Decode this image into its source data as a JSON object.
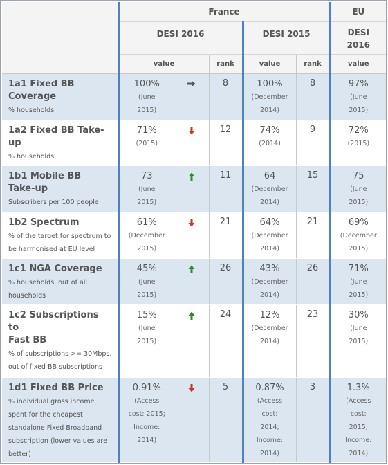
{
  "header": {
    "group_france": "France",
    "group_eu": "EU",
    "desi2016": "DESI 2016",
    "desi2015": "DESI 2015",
    "eu_desi_line1": "DESI",
    "eu_desi_line2": "2016",
    "col_value": "value",
    "col_rank": "rank"
  },
  "rows": [
    {
      "name_line1": "1a1 Fixed BB",
      "name_line2": "Coverage",
      "desc": "% households",
      "v16": "100%",
      "n16a": "(June",
      "n16b": "2015)",
      "trend": "right-arrow-icon",
      "trend_color": "#555555",
      "r16": "8",
      "v15": "100%",
      "n15a": "(December",
      "n15b": "2014)",
      "r15": "8",
      "veu": "97%",
      "neua": "(June",
      "neub": "2015)"
    },
    {
      "name_line1": "1a2 Fixed BB Take-",
      "name_line2": "up",
      "desc": "% households",
      "v16": "71%",
      "n16a": "(2015)",
      "trend": "down-arrow-icon",
      "trend_color": "#c0392b",
      "r16": "12",
      "v15": "74%",
      "n15a": "(2014)",
      "r15": "9",
      "veu": "72%",
      "neua": "(2015)"
    },
    {
      "name_line1": "1b1 Mobile BB",
      "name_line2": "Take-up",
      "desc": "Subscribers per 100 people",
      "v16": "73",
      "n16a": "(June",
      "n16b": "2015)",
      "trend": "up-arrow-icon",
      "trend_color": "#2e8b2e",
      "r16": "11",
      "v15": "64",
      "n15a": "(December",
      "n15b": "2014)",
      "r15": "15",
      "veu": "75",
      "neua": "(June",
      "neub": "2015)"
    },
    {
      "name_line1": "1b2 Spectrum",
      "desc": "% of the target for spectrum to be harmonised at EU level",
      "v16": "61%",
      "n16a": "(December",
      "n16b": "2015)",
      "trend": "down-arrow-icon",
      "trend_color": "#c0392b",
      "r16": "21",
      "v15": "64%",
      "n15a": "(December",
      "n15b": "2014)",
      "r15": "21",
      "veu": "69%",
      "neua": "(December",
      "neub": "2015)"
    },
    {
      "name_line1": "1c1 NGA Coverage",
      "desc": "% households, out of all households",
      "v16": "45%",
      "n16a": "(June",
      "n16b": "2015)",
      "trend": "up-arrow-icon",
      "trend_color": "#2e8b2e",
      "r16": "26",
      "v15": "43%",
      "n15a": "(December",
      "n15b": "2014)",
      "r15": "26",
      "veu": "71%",
      "neua": "(June",
      "neub": "2015)"
    },
    {
      "name_line1": "1c2 Subscriptions to",
      "name_line2": "Fast BB",
      "desc": "% of subscriptions >= 30Mbps, out of fixed BB subscriptions",
      "v16": "15%",
      "n16a": "(June",
      "n16b": "2015)",
      "trend": "up-arrow-icon",
      "trend_color": "#2e8b2e",
      "r16": "24",
      "v15": "12%",
      "n15a": "(December",
      "n15b": "2014)",
      "r15": "23",
      "veu": "30%",
      "neua": "(June",
      "neub": "2015)"
    },
    {
      "name_line1": "1d1 Fixed BB Price",
      "desc": "% individual gross income spent for the cheapest standalone Fixed Broadband subscription (lower values are better)",
      "v16": "0.91%",
      "n16a": "(Access",
      "n16b": "cost: 2015;",
      "n16c": "Income:",
      "n16d": "2014)",
      "trend": "down-arrow-icon",
      "trend_color": "#c0392b",
      "r16": "5",
      "v15": "0.87%",
      "n15a": "(Access",
      "n15b": "cost:",
      "n15c": "2014;",
      "n15d": "Income:",
      "n15e": "2014)",
      "r15": "3",
      "veu": "1.3%",
      "neua": "(Access",
      "neub": "cost:",
      "neuc": "2015;",
      "neud": "Income:",
      "neue": "2014)"
    }
  ]
}
